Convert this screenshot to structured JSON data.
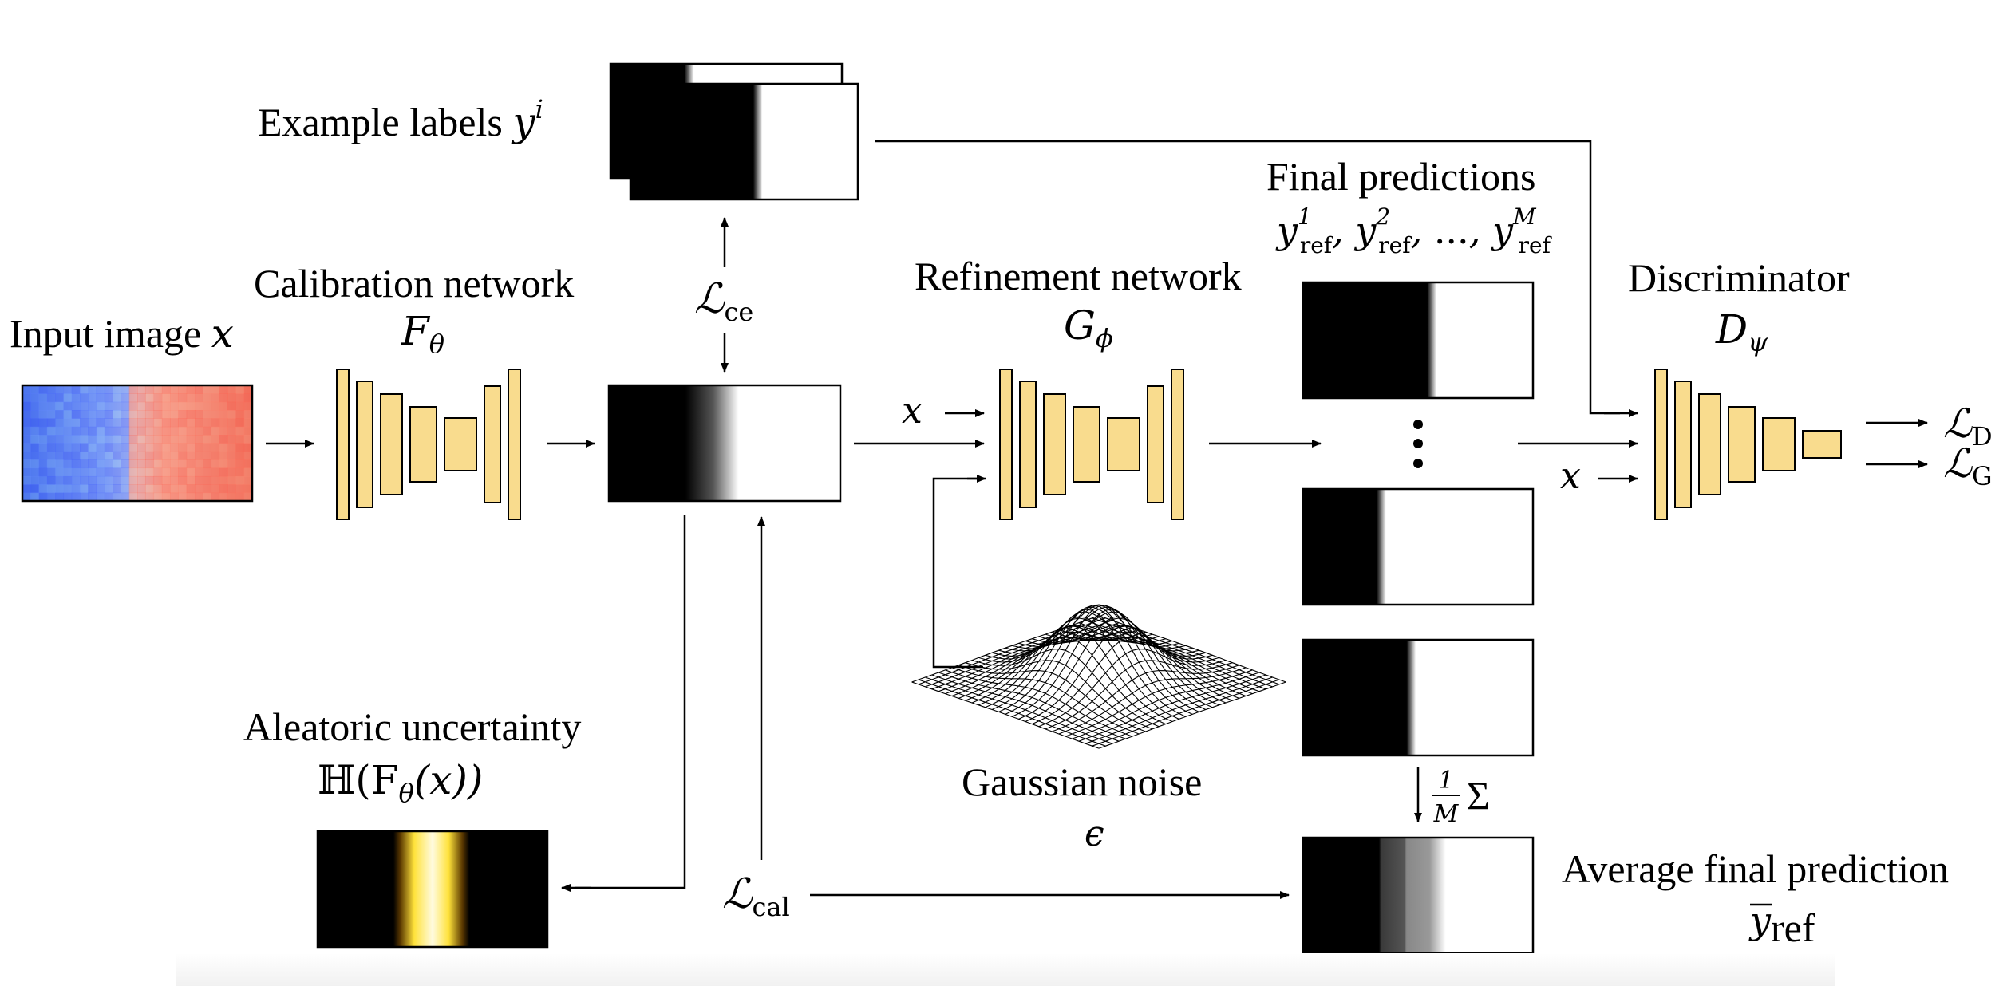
{
  "labels": {
    "input_image": "Input image",
    "input_var": "x",
    "calibration_network": "Calibration network",
    "calibration_symbol": "F",
    "calibration_sub": "θ",
    "example_labels": "Example labels",
    "example_var": "y",
    "example_sup": "i",
    "loss_ce_symbol": "ℒ",
    "loss_ce_sub": "ce",
    "refinement_network": "Refinement network",
    "refinement_symbol": "G",
    "refinement_sub": "ϕ",
    "final_predictions": "Final predictions",
    "final_pred_formula": "y",
    "final_pred_sub": "ref",
    "final_pred_sup_1": "1",
    "final_pred_sup_2": "2",
    "final_pred_sup_m": "M",
    "final_pred_dots": "...",
    "discriminator": "Discriminator",
    "discriminator_symbol": "D",
    "discriminator_sub": "ψ",
    "loss_d_symbol": "ℒ",
    "loss_d_sub": "D",
    "loss_g_symbol": "ℒ",
    "loss_g_sub": "G",
    "x_input_refine": "x",
    "x_input_disc": "x",
    "aleatoric_uncertainty": "Aleatoric uncertainty",
    "aleatoric_formula": "ℍ(F",
    "aleatoric_formula_sub": "θ",
    "aleatoric_formula_end": "(x))",
    "gaussian_noise": "Gaussian noise",
    "gaussian_symbol": "ϵ",
    "loss_cal_symbol": "ℒ",
    "loss_cal_sub": "cal",
    "average_op_num": "1",
    "average_op_den": "M",
    "average_op_sigma": "Σ",
    "average_final_prediction": "Average final prediction",
    "average_symbol": "y",
    "average_sub": "ref"
  },
  "colors": {
    "layer_fill": "#f9dc8e",
    "heat_cold": "#3f6fe0",
    "heat_warm": "#e8745f",
    "uncertainty_peak": "#ffe23a"
  }
}
